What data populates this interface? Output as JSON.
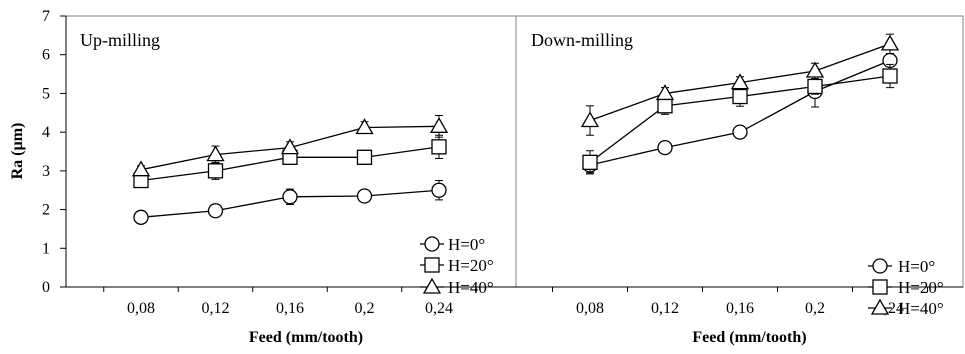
{
  "y_axis_label": "Ra (µm)",
  "y_ticks": [
    "0",
    "1",
    "2",
    "3",
    "4",
    "5",
    "6",
    "7"
  ],
  "chart_data": [
    {
      "type": "line",
      "title": "Up-milling",
      "xlabel": "Feed (mm/tooth)",
      "ylabel": "Ra (µm)",
      "x": [
        "0,08",
        "0,12",
        "0,16",
        "0,2",
        "0,24"
      ],
      "ylim": [
        0,
        7
      ],
      "grid": false,
      "legend_position": "bottom-right",
      "series": [
        {
          "name": "H=0°",
          "marker": "circle",
          "values": [
            1.8,
            1.97,
            2.33,
            2.35,
            2.5
          ],
          "errors": [
            0.12,
            0.1,
            0.2,
            0.12,
            0.25
          ]
        },
        {
          "name": "H=20°",
          "marker": "square",
          "values": [
            2.75,
            3.0,
            3.35,
            3.35,
            3.62
          ],
          "errors": [
            0.18,
            0.22,
            0.15,
            0.18,
            0.3
          ]
        },
        {
          "name": "H=40°",
          "marker": "triangle",
          "values": [
            3.03,
            3.42,
            3.6,
            4.12,
            4.15
          ],
          "errors": [
            0.1,
            0.22,
            0.15,
            0.15,
            0.28
          ]
        }
      ]
    },
    {
      "type": "line",
      "title": "Down-milling",
      "xlabel": "Feed (mm/tooth)",
      "ylabel": "",
      "x": [
        "0,08",
        "0,12",
        "0,16",
        "0,2",
        "0,24"
      ],
      "ylim": [
        0,
        7
      ],
      "grid": false,
      "legend_position": "bottom-right",
      "series": [
        {
          "name": "H=0°",
          "marker": "circle",
          "values": [
            3.15,
            3.6,
            4.0,
            5.05,
            5.85
          ],
          "errors": [
            0.2,
            0.12,
            0.12,
            0.4,
            0.3
          ]
        },
        {
          "name": "H=20°",
          "marker": "square",
          "values": [
            3.22,
            4.68,
            4.92,
            5.18,
            5.45
          ],
          "errors": [
            0.3,
            0.22,
            0.25,
            0.2,
            0.3
          ]
        },
        {
          "name": "H=40°",
          "marker": "triangle",
          "values": [
            4.3,
            5.0,
            5.28,
            5.58,
            6.28
          ],
          "errors": [
            0.38,
            0.15,
            0.15,
            0.2,
            0.25
          ]
        }
      ]
    }
  ]
}
